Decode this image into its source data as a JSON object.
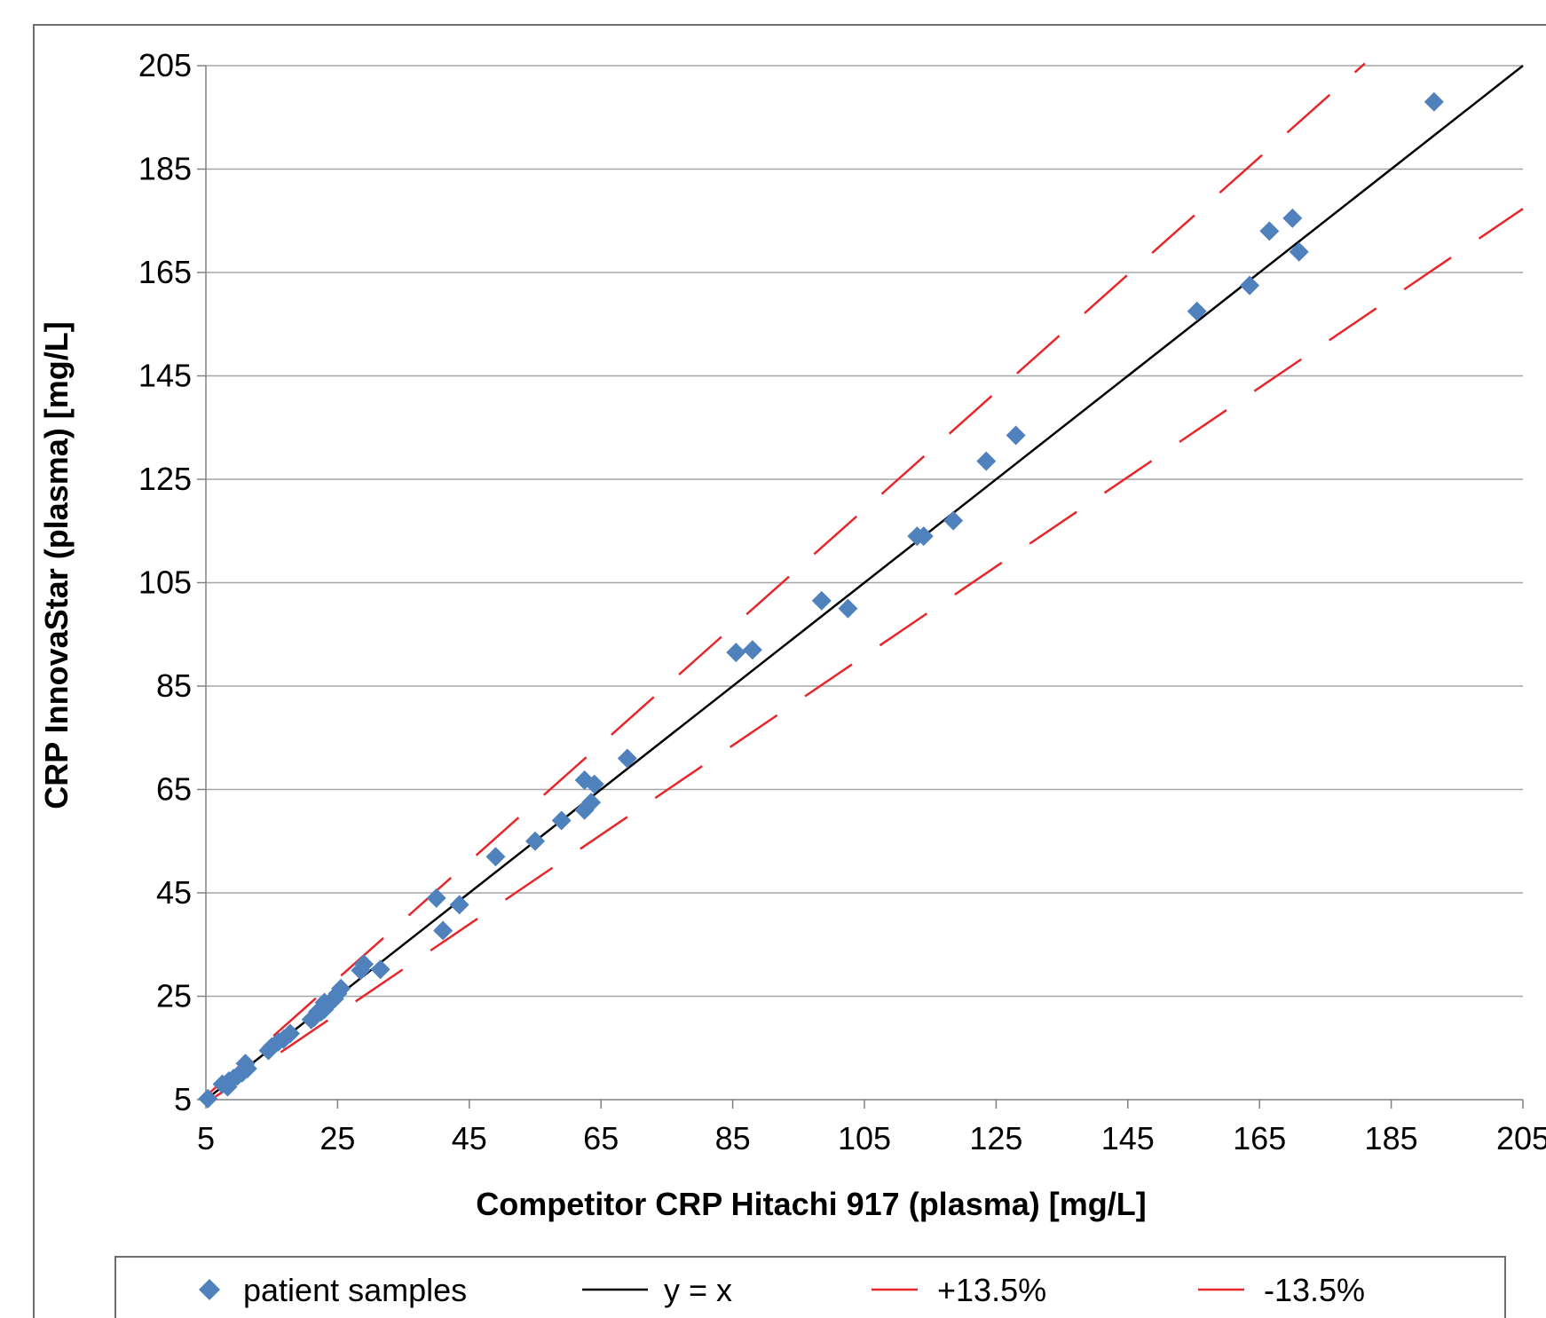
{
  "chart_data": {
    "type": "scatter",
    "xlabel": "Competitor CRP Hitachi 917 (plasma) [mg/L]",
    "ylabel": "CRP InnovaStar (plasma) [mg/L]",
    "xlim": [
      5,
      205
    ],
    "ylim": [
      5,
      205
    ],
    "xticks": [
      "5",
      "25",
      "45",
      "65",
      "85",
      "105",
      "125",
      "145",
      "165",
      "185",
      "205"
    ],
    "yticks": [
      "5",
      "25",
      "45",
      "65",
      "85",
      "105",
      "125",
      "145",
      "165",
      "185",
      "205"
    ],
    "grid": "horizontal",
    "legend_position": "bottom",
    "colors": {
      "points": "#4F81BD",
      "identity": "#000000",
      "limits": "#E8262A",
      "grid": "#A6A6A6"
    },
    "series": [
      {
        "name": "patient samples",
        "kind": "points",
        "marker": "diamond",
        "points": [
          [
            5.3,
            5.2
          ],
          [
            7.5,
            8.0
          ],
          [
            8.5,
            8.6
          ],
          [
            9.2,
            9.1
          ],
          [
            8.3,
            7.5
          ],
          [
            9.8,
            9.6
          ],
          [
            10.5,
            10.2
          ],
          [
            11.3,
            11.0
          ],
          [
            11.0,
            12.0
          ],
          [
            14.5,
            14.5
          ],
          [
            15.0,
            15.2
          ],
          [
            16.0,
            16.2
          ],
          [
            16.8,
            16.7
          ],
          [
            17.8,
            17.8
          ],
          [
            21.0,
            20.5
          ],
          [
            21.5,
            21.0
          ],
          [
            22.0,
            22.0
          ],
          [
            22.5,
            22.0
          ],
          [
            23.0,
            23.8
          ],
          [
            23.0,
            22.5
          ],
          [
            24.0,
            24.0
          ],
          [
            24.5,
            24.5
          ],
          [
            25.0,
            25.5
          ],
          [
            25.5,
            26.5
          ],
          [
            28.5,
            30.0
          ],
          [
            29.0,
            31.2
          ],
          [
            31.5,
            30.2
          ],
          [
            40.0,
            44.0
          ],
          [
            41.0,
            37.7
          ],
          [
            43.5,
            42.7
          ],
          [
            49.0,
            52.0
          ],
          [
            55.0,
            55.0
          ],
          [
            59.0,
            59.0
          ],
          [
            62.5,
            61.0
          ],
          [
            63.5,
            62.5
          ],
          [
            64.0,
            66.0
          ],
          [
            62.5,
            66.8
          ],
          [
            69.0,
            71.0
          ],
          [
            85.5,
            91.5
          ],
          [
            88.0,
            92.0
          ],
          [
            98.5,
            101.5
          ],
          [
            102.5,
            100.0
          ],
          [
            113.0,
            114.0
          ],
          [
            114.0,
            114.0
          ],
          [
            118.5,
            117.0
          ],
          [
            123.5,
            128.5
          ],
          [
            128.0,
            133.5
          ],
          [
            155.5,
            157.5
          ],
          [
            163.5,
            162.5
          ],
          [
            166.5,
            173.0
          ],
          [
            170.0,
            175.5
          ],
          [
            171.0,
            169.0
          ],
          [
            191.5,
            198.0
          ]
        ]
      },
      {
        "name": "y = x",
        "kind": "line",
        "slope": 1.0,
        "x_range": [
          5,
          205
        ]
      },
      {
        "name": "+13.5%",
        "kind": "dashed-line",
        "slope": 1.135,
        "x_range": [
          5,
          181
        ]
      },
      {
        "name": "-13.5%",
        "kind": "dashed-line",
        "slope": 0.865,
        "x_range": [
          5,
          205
        ]
      }
    ]
  }
}
